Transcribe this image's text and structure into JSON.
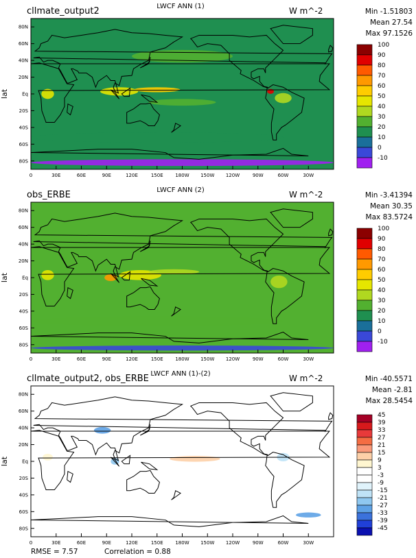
{
  "figure": {
    "ylabel": "lat",
    "lat_ticks": [
      "80N",
      "60N",
      "40N",
      "20N",
      "Eq",
      "20S",
      "40S",
      "60S",
      "80S"
    ],
    "lon_ticks": [
      "0",
      "30E",
      "60E",
      "90E",
      "120E",
      "150E",
      "180W",
      "150W",
      "120W",
      "90W",
      "60W",
      "30W"
    ],
    "footer": {
      "rmse": "RMSE = 7.57",
      "correlation": "Correlation = 0.88"
    }
  },
  "panels": [
    {
      "id": "model",
      "left_title": "cllmate_output2",
      "center_title": "LWCF ANN (1)",
      "units": "W m^-2",
      "stats": [
        "Min -1.51803",
        "Mean 27.54",
        "Max 97.1526"
      ],
      "colorbar": {
        "labels": [
          "100",
          "90",
          "80",
          "70",
          "60",
          "50",
          "40",
          "30",
          "20",
          "10",
          "0",
          "-10"
        ],
        "colors": [
          "#8b0000",
          "#e00000",
          "#ff5a00",
          "#ff9900",
          "#ffcc00",
          "#e6e600",
          "#b0d820",
          "#52b030",
          "#1f8f50",
          "#1a6f9a",
          "#3a48d8",
          "#a020f0"
        ]
      }
    },
    {
      "id": "obs",
      "left_title": "obs_ERBE",
      "center_title": "LWCF ANN (2)",
      "units": "W m^-2",
      "stats": [
        "Min -3.41394",
        "Mean 30.35",
        "Max 83.5724"
      ],
      "colorbar": {
        "labels": [
          "100",
          "90",
          "80",
          "70",
          "60",
          "50",
          "40",
          "30",
          "20",
          "10",
          "0",
          "-10"
        ],
        "colors": [
          "#8b0000",
          "#e00000",
          "#ff5a00",
          "#ff9900",
          "#ffcc00",
          "#e6e600",
          "#b0d820",
          "#52b030",
          "#1f8f50",
          "#1a6f9a",
          "#3a48d8",
          "#a020f0"
        ]
      }
    },
    {
      "id": "diff",
      "left_title": "cllmate_output2, obs_ERBE",
      "center_title": "LWCF ANN (1)-(2)",
      "units": "W m^-2",
      "stats": [
        "Min -40.5571",
        "Mean -2.81",
        "Max 28.5454"
      ],
      "colorbar": {
        "labels": [
          "45",
          "39",
          "33",
          "27",
          "21",
          "15",
          "9",
          "3",
          "-3",
          "-9",
          "-15",
          "-21",
          "-27",
          "-33",
          "-39",
          "-45"
        ],
        "colors": [
          "#a50026",
          "#d7191c",
          "#e83a3a",
          "#f46d43",
          "#fa9a7a",
          "#fdd0a8",
          "#fff6d0",
          "#ffffff",
          "#ffffff",
          "#e0f3fb",
          "#bfe3f7",
          "#8fc8f0",
          "#5ea2e6",
          "#3b72dc",
          "#2040d8",
          "#0a10b0"
        ]
      }
    }
  ],
  "chart_data": [
    {
      "type": "heatmap",
      "title": "LWCF ANN (1)",
      "subtitle": "cllmate_output2",
      "units": "W m^-2",
      "ylabel": "lat",
      "xlim": [
        0,
        360
      ],
      "ylim": [
        -90,
        90
      ],
      "levels": [
        -10,
        0,
        10,
        20,
        30,
        40,
        50,
        60,
        70,
        80,
        90,
        100
      ],
      "stats": {
        "min": -1.51803,
        "mean": 27.54,
        "max": 97.1526
      },
      "features": [
        {
          "lon": 150,
          "lat": 5,
          "lon_width": 55,
          "lat_width": 6,
          "value": 65
        },
        {
          "lon": 105,
          "lat": 3,
          "lon_width": 45,
          "lat_width": 10,
          "value": 50
        },
        {
          "lon": 20,
          "lat": 0,
          "lon_width": 15,
          "lat_width": 12,
          "value": 50
        },
        {
          "lon": 285,
          "lat": 3,
          "lon_width": 8,
          "lat_width": 6,
          "value": 90
        },
        {
          "lon": 300,
          "lat": -5,
          "lon_width": 20,
          "lat_width": 12,
          "value": 45
        },
        {
          "lon": 180,
          "lat": -10,
          "lon_width": 80,
          "lat_width": 8,
          "value": 35
        },
        {
          "lon": 180,
          "lat": 45,
          "lon_width": 120,
          "lat_width": 15,
          "value": 30
        },
        {
          "lon": 150,
          "lat": -52,
          "lon_width": 300,
          "lat_width": 12,
          "value": 25
        },
        {
          "lon": 180,
          "lat": -82,
          "lon_width": 360,
          "lat_width": 8,
          "value": -5
        }
      ]
    },
    {
      "type": "heatmap",
      "title": "LWCF ANN (2)",
      "subtitle": "obs_ERBE",
      "units": "W m^-2",
      "ylabel": "lat",
      "xlim": [
        0,
        360
      ],
      "ylim": [
        -90,
        90
      ],
      "levels": [
        -10,
        0,
        10,
        20,
        30,
        40,
        50,
        60,
        70,
        80,
        90,
        100
      ],
      "stats": {
        "min": -3.41394,
        "mean": 30.35,
        "max": 83.5724
      },
      "features": [
        {
          "lon": 95,
          "lat": 0,
          "lon_width": 15,
          "lat_width": 8,
          "value": 75
        },
        {
          "lon": 130,
          "lat": 3,
          "lon_width": 50,
          "lat_width": 12,
          "value": 55
        },
        {
          "lon": 170,
          "lat": 7,
          "lon_width": 60,
          "lat_width": 6,
          "value": 45
        },
        {
          "lon": 20,
          "lat": 3,
          "lon_width": 15,
          "lat_width": 12,
          "value": 50
        },
        {
          "lon": 295,
          "lat": -5,
          "lon_width": 20,
          "lat_width": 15,
          "value": 45
        },
        {
          "lon": 180,
          "lat": 45,
          "lon_width": 120,
          "lat_width": 15,
          "value": 30
        },
        {
          "lon": 150,
          "lat": -52,
          "lon_width": 300,
          "lat_width": 12,
          "value": 30
        },
        {
          "lon": 180,
          "lat": -84,
          "lon_width": 360,
          "lat_width": 6,
          "value": 5
        }
      ]
    },
    {
      "type": "heatmap",
      "title": "LWCF ANN (1)-(2)",
      "subtitle": "cllmate_output2, obs_ERBE",
      "units": "W m^-2",
      "ylabel": "lat",
      "xlim": [
        0,
        360
      ],
      "ylim": [
        -90,
        90
      ],
      "levels": [
        -45,
        -39,
        -33,
        -27,
        -21,
        -15,
        -9,
        -3,
        3,
        9,
        15,
        21,
        27,
        33,
        39,
        45
      ],
      "stats": {
        "min": -40.5571,
        "mean": -2.81,
        "max": 28.5454,
        "rmse": 7.57,
        "correlation": 0.88
      },
      "features": [
        {
          "lon": 195,
          "lat": 3,
          "lon_width": 60,
          "lat_width": 7,
          "value": 20
        },
        {
          "lon": 85,
          "lat": 37,
          "lon_width": 20,
          "lat_width": 8,
          "value": -25
        },
        {
          "lon": 100,
          "lat": 0,
          "lon_width": 10,
          "lat_width": 8,
          "value": -20
        },
        {
          "lon": 300,
          "lat": 5,
          "lon_width": 15,
          "lat_width": 10,
          "value": -15
        },
        {
          "lon": 330,
          "lat": -64,
          "lon_width": 30,
          "lat_width": 6,
          "value": -25
        },
        {
          "lon": 20,
          "lat": 5,
          "lon_width": 12,
          "lat_width": 8,
          "value": 10
        }
      ]
    }
  ]
}
